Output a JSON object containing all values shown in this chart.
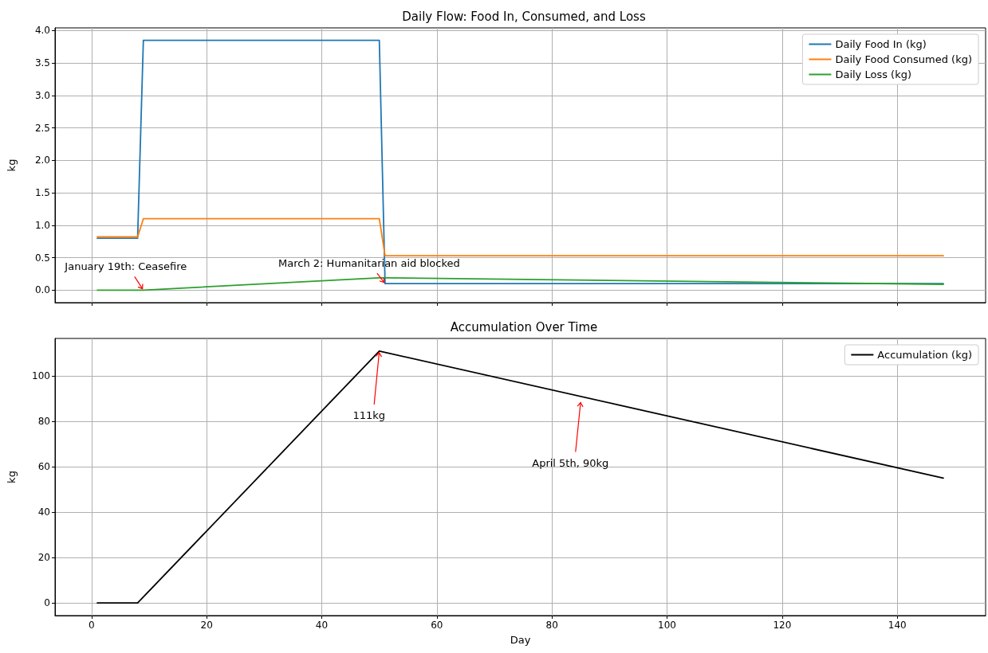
{
  "chart_data": [
    {
      "type": "line",
      "title": "Daily Flow: Food In, Consumed, and Loss",
      "ylabel": "kg",
      "x": [
        1,
        8,
        9,
        50,
        51,
        148
      ],
      "series": [
        {
          "name": "Daily Food In (kg)",
          "color": "#1f77b4",
          "values": [
            0.8,
            0.8,
            3.85,
            3.85,
            0.1,
            0.1
          ]
        },
        {
          "name": "Daily Food Consumed (kg)",
          "color": "#ff7f0e",
          "values": [
            0.82,
            0.82,
            1.1,
            1.1,
            0.53,
            0.53
          ]
        },
        {
          "name": "Daily Loss (kg)",
          "color": "#2ca02c",
          "values": [
            0,
            0,
            0,
            0.19,
            0.19,
            0.09
          ]
        }
      ],
      "xlim": [
        -6.35,
        155.35
      ],
      "xticks": [
        0,
        20,
        40,
        60,
        80,
        100,
        120,
        140
      ],
      "ylim": [
        -0.1925,
        4.0425
      ],
      "yticks": [
        {
          "value": 0,
          "label": "0.0"
        },
        {
          "value": 0.5,
          "label": "0.5"
        },
        {
          "value": 1,
          "label": "1.0"
        },
        {
          "value": 1.5,
          "label": "1.5"
        },
        {
          "value": 2,
          "label": "2.0"
        },
        {
          "value": 2.5,
          "label": "2.5"
        },
        {
          "value": 3,
          "label": "3.0"
        },
        {
          "value": 3.5,
          "label": "3.5"
        },
        {
          "value": 4,
          "label": "4.0"
        }
      ],
      "annotations": [
        {
          "text": "January 19th: Ceasefire",
          "x": 9,
          "y": 0
        },
        {
          "text": "March 2: Humanitarian aid blocked",
          "x": 51,
          "y": 0.1
        }
      ],
      "grid": true,
      "legend": "top right",
      "marker": "none",
      "line_style": "solid",
      "tick_labels": "y"
    },
    {
      "type": "line",
      "title": "Accumulation Over Time",
      "xlabel": "Day",
      "ylabel": "kg",
      "x": [
        1,
        8,
        50,
        148
      ],
      "series": [
        {
          "name": "Accumulation (kg)",
          "color": "#000000",
          "values": [
            0,
            0,
            111,
            55
          ]
        }
      ],
      "xlim": [
        -6.35,
        155.35
      ],
      "xticks": [
        0,
        20,
        40,
        60,
        80,
        100,
        120,
        140
      ],
      "ylim": [
        -5.55,
        116.55
      ],
      "yticks": [
        0,
        20,
        40,
        60,
        80,
        100
      ],
      "annotations": [
        {
          "text": "111kg",
          "x": 50,
          "y": 111
        },
        {
          "text": "April 5th, 90kg",
          "x": 85,
          "y": 89
        }
      ],
      "grid": true,
      "legend": "top right",
      "marker": "none",
      "line_style": "solid"
    }
  ]
}
